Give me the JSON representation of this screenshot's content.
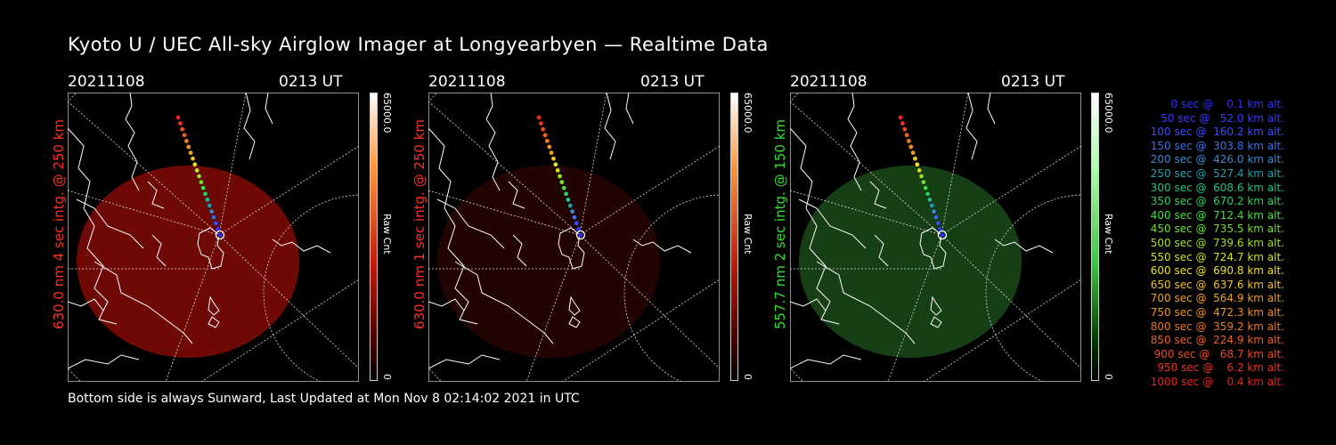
{
  "title": "Kyoto U / UEC All-sky Airglow Imager at Longyearbyen — Realtime Data",
  "footer": "Bottom side is always Sunward, Last Updated at Mon Nov  8 02:14:02 2021 in UTC",
  "panels": [
    {
      "date": "20211108",
      "time": "0213 UT",
      "label": "630.0 nm 4 sec intg. @ 250 km",
      "label_color": "#ff3020",
      "image_color": "#7a0a05",
      "image_opacity": "0.9",
      "colorbar_max": "65000.0",
      "colorbar_min": "0",
      "colorbar_unit": "Raw Cnt",
      "colorbar_colors": [
        "#ff9a40",
        "#c01808",
        "#400000"
      ]
    },
    {
      "date": "20211108",
      "time": "0213 UT",
      "label": "630.0 nm 1 sec intg. @ 250 km",
      "label_color": "#ff3020",
      "image_color": "#2a0603",
      "image_opacity": "0.8",
      "colorbar_max": "65000.0",
      "colorbar_min": "0",
      "colorbar_unit": "Raw Cnt",
      "colorbar_colors": [
        "#ff9a40",
        "#c01808",
        "#400000"
      ]
    },
    {
      "date": "20211108",
      "time": "0213 UT",
      "label": "557.7 nm 2 sec intg. @ 150 km",
      "label_color": "#30e030",
      "image_color": "#1a4a1a",
      "image_opacity": "0.85",
      "colorbar_max": "65000.0",
      "colorbar_min": "0",
      "colorbar_unit": "Raw Cnt",
      "colorbar_colors": [
        "#b0ffb0",
        "#40c040",
        "#003000"
      ]
    }
  ],
  "legend": [
    {
      "text": "   0 sec @    0.1 km alt.",
      "color": "#3030ff"
    },
    {
      "text": "  50 sec @   52.0 km alt.",
      "color": "#3a3aff"
    },
    {
      "text": " 100 sec @  160.2 km alt.",
      "color": "#3a50ff"
    },
    {
      "text": " 150 sec @  303.8 km alt.",
      "color": "#3a70e8"
    },
    {
      "text": " 200 sec @  426.0 km alt.",
      "color": "#3a8ad0"
    },
    {
      "text": " 250 sec @  527.4 km alt.",
      "color": "#20a0b0"
    },
    {
      "text": " 300 sec @  608.6 km alt.",
      "color": "#20c090"
    },
    {
      "text": " 350 sec @  670.2 km alt.",
      "color": "#30d060"
    },
    {
      "text": " 400 sec @  712.4 km alt.",
      "color": "#40e040"
    },
    {
      "text": " 450 sec @  735.5 km alt.",
      "color": "#70e030"
    },
    {
      "text": " 500 sec @  739.6 km alt.",
      "color": "#a0e020"
    },
    {
      "text": " 550 sec @  724.7 km alt.",
      "color": "#d0e020"
    },
    {
      "text": " 600 sec @  690.8 km alt.",
      "color": "#f0e020"
    },
    {
      "text": " 650 sec @  637.6 km alt.",
      "color": "#f0c020"
    },
    {
      "text": " 700 sec @  564.9 km alt.",
      "color": "#f0a020"
    },
    {
      "text": " 750 sec @  472.3 km alt.",
      "color": "#f09020"
    },
    {
      "text": " 800 sec @  359.2 km alt.",
      "color": "#f07820"
    },
    {
      "text": " 850 sec @  224.9 km alt.",
      "color": "#f06020"
    },
    {
      "text": " 900 sec @   68.7 km alt.",
      "color": "#f04820"
    },
    {
      "text": " 950 sec @    6.2 km alt.",
      "color": "#f03020"
    },
    {
      "text": "1000 sec @    0.4 km alt.",
      "color": "#f02020"
    }
  ],
  "icons": {
    "camera": "circle-marker-icon"
  }
}
